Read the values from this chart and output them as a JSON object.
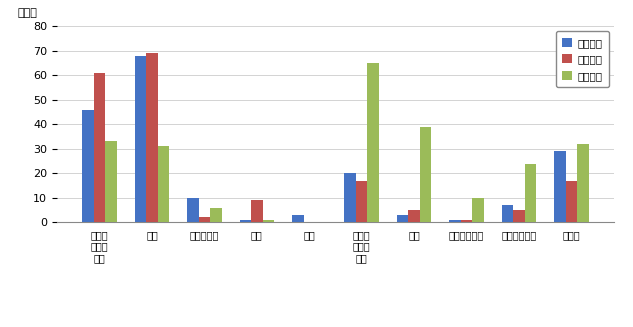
{
  "categories": [
    "就職・\n転職・\n転業",
    "転勤",
    "退職・廃業",
    "就学",
    "卒業",
    "結婚・\n離婚・\n縁組",
    "住宅",
    "交通の利便性",
    "生活の利便性",
    "その他"
  ],
  "series": {
    "県外転入": [
      46,
      68,
      10,
      1,
      3,
      20,
      3,
      1,
      7,
      29
    ],
    "県外転出": [
      61,
      69,
      2,
      9,
      0,
      17,
      5,
      1,
      5,
      17
    ],
    "県内移動": [
      33,
      31,
      6,
      1,
      0,
      65,
      39,
      10,
      24,
      32
    ]
  },
  "colors": {
    "県外転入": "#4472C4",
    "県外転出": "#C0504D",
    "県内移動": "#9BBB59"
  },
  "ylabel": "（人）",
  "ylim": [
    0,
    80
  ],
  "yticks": [
    0,
    10,
    20,
    30,
    40,
    50,
    60,
    70,
    80
  ],
  "legend_order": [
    "県外転入",
    "県外転出",
    "県内移動"
  ],
  "bar_width": 0.22,
  "figsize": [
    6.33,
    3.27
  ],
  "dpi": 100
}
